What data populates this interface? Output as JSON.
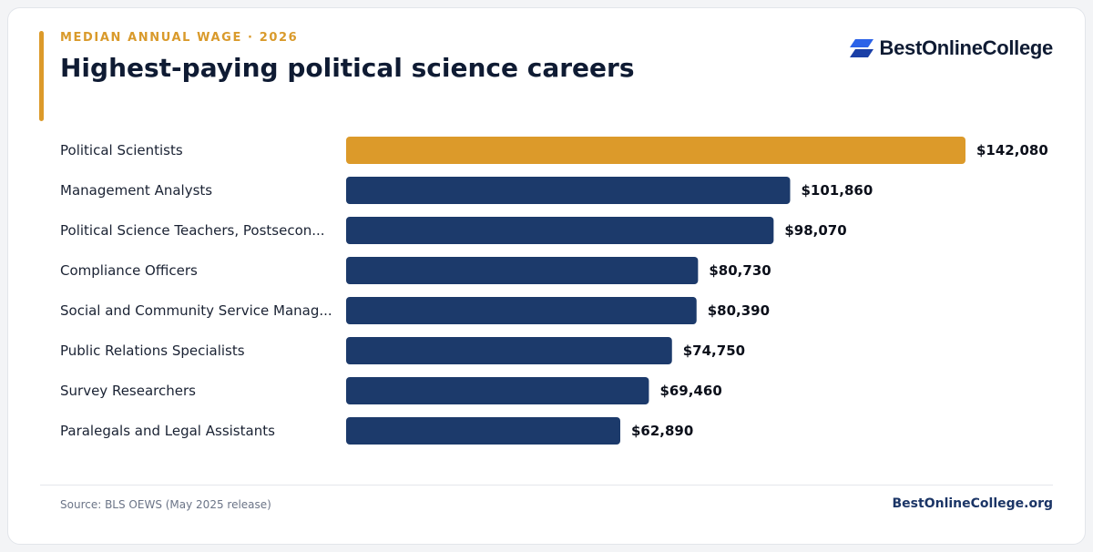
{
  "header": {
    "eyebrow": "MEDIAN ANNUAL WAGE · 2026",
    "title": "Highest-paying political science careers",
    "brand_name": "BestOnlineCollege",
    "logo_icon": "bestonlinecollege-logo-icon"
  },
  "colors": {
    "highlight": "#dc9a2a",
    "bar": "#1c3a6b",
    "label_text": "#1a2233",
    "value_text": "#0b0f1a"
  },
  "chart_data": {
    "type": "bar",
    "orientation": "horizontal",
    "categories": [
      "Political Scientists",
      "Management Analysts",
      "Political Science Teachers, Postsecon...",
      "Compliance Officers",
      "Social and Community Service Manag...",
      "Public Relations Specialists",
      "Survey Researchers",
      "Paralegals and Legal Assistants"
    ],
    "values": [
      142080,
      101860,
      98070,
      80730,
      80390,
      74750,
      69460,
      62890
    ],
    "value_labels": [
      "$142,080",
      "$101,860",
      "$98,070",
      "$80,730",
      "$80,390",
      "$74,750",
      "$69,460",
      "$62,890"
    ],
    "highlight_index": 0,
    "xlim": [
      0,
      142080
    ],
    "grid": false,
    "legend": "none",
    "title": "Highest-paying political science careers",
    "xlabel": "",
    "ylabel": ""
  },
  "footer": {
    "source": "Source: BLS OEWS (May 2025 release)",
    "site": "BestOnlineCollege.org"
  }
}
